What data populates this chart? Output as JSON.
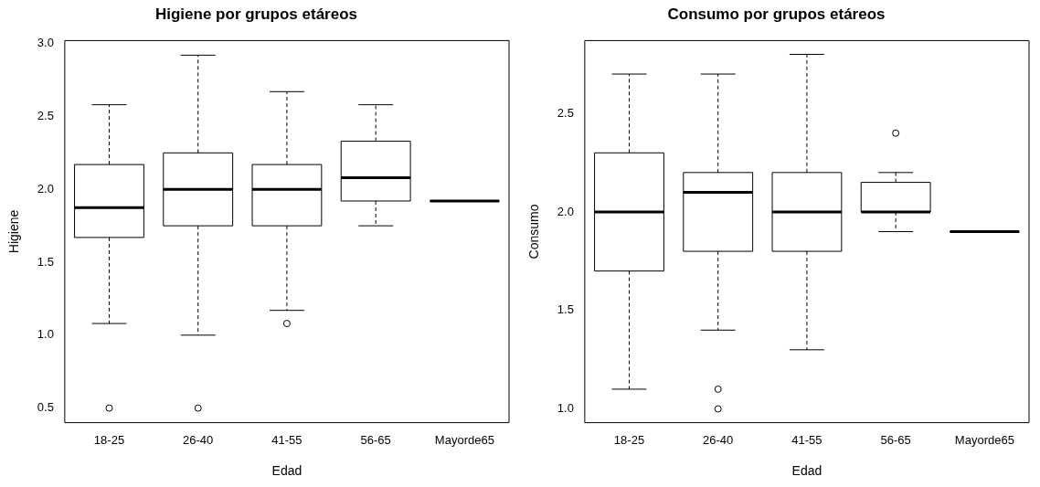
{
  "chart_data": [
    {
      "type": "box",
      "title": "Higiene por grupos etáreos",
      "xlabel": "Edad",
      "ylabel": "Higiene",
      "color": "#000000",
      "categories": [
        "18-25",
        "26-40",
        "41-55",
        "56-65",
        "Mayorde65"
      ],
      "boxes": [
        {
          "low": 1.08,
          "q1": 1.67,
          "median": 1.875,
          "q3": 2.17,
          "high": 2.58,
          "outliers": [
            0.5
          ]
        },
        {
          "low": 1.0,
          "q1": 1.75,
          "median": 2.0,
          "q3": 2.25,
          "high": 2.92,
          "outliers": [
            0.5
          ]
        },
        {
          "low": 1.17,
          "q1": 1.75,
          "median": 2.0,
          "q3": 2.17,
          "high": 2.67,
          "outliers": [
            1.08
          ]
        },
        {
          "low": 1.75,
          "q1": 1.92,
          "median": 2.08,
          "q3": 2.33,
          "high": 2.58
        },
        {
          "low": 1.92,
          "q1": 1.92,
          "median": 1.92,
          "q3": 1.92,
          "high": 1.92
        }
      ],
      "ylim": [
        0.4,
        3.02
      ],
      "yticks": [
        {
          "value": 0.5,
          "label": "0.5"
        },
        {
          "value": 1,
          "label": "1.0"
        },
        {
          "value": 1.5,
          "label": "1.5"
        },
        {
          "value": 2,
          "label": "2.0"
        },
        {
          "value": 2.5,
          "label": "2.5"
        },
        {
          "value": 3,
          "label": "3.0"
        }
      ]
    },
    {
      "type": "box",
      "title": "Consumo por grupos etáreos",
      "xlabel": "Edad",
      "ylabel": "Consumo",
      "color": "#000000",
      "categories": [
        "18-25",
        "26-40",
        "41-55",
        "56-65",
        "Mayorde65"
      ],
      "boxes": [
        {
          "low": 1.1,
          "q1": 1.7,
          "median": 2.0,
          "q3": 2.3,
          "high": 2.7
        },
        {
          "low": 1.4,
          "q1": 1.8,
          "median": 2.1,
          "q3": 2.2,
          "high": 2.7,
          "outliers": [
            1.1,
            1.0
          ]
        },
        {
          "low": 1.3,
          "q1": 1.8,
          "median": 2.0,
          "q3": 2.2,
          "high": 2.8
        },
        {
          "low": 1.9,
          "q1": 2.0,
          "median": 2.0,
          "q3": 2.15,
          "high": 2.2,
          "outliers": [
            2.4
          ]
        },
        {
          "low": 1.9,
          "q1": 1.9,
          "median": 1.9,
          "q3": 1.9,
          "high": 1.9
        }
      ],
      "ylim": [
        0.93,
        2.87
      ],
      "yticks": [
        {
          "value": 1,
          "label": "1.0"
        },
        {
          "value": 1.5,
          "label": "1.5"
        },
        {
          "value": 2,
          "label": "2.0"
        },
        {
          "value": 2.5,
          "label": "2.5"
        }
      ]
    }
  ]
}
